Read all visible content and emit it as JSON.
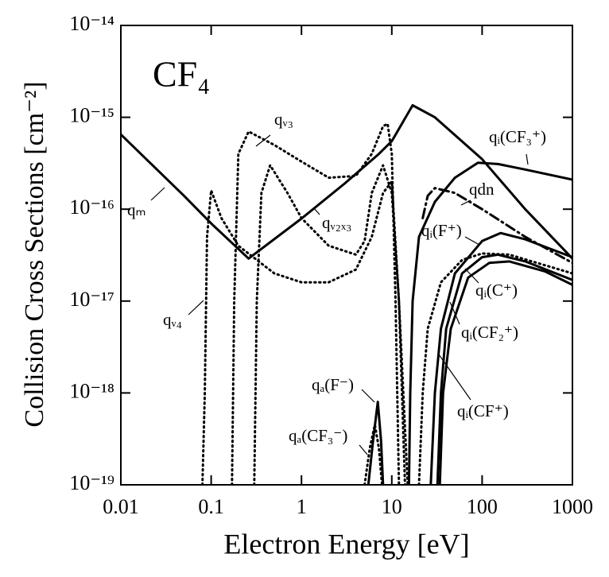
{
  "chart_data": {
    "type": "line",
    "title": "CF₄",
    "x_label": "Electron Energy  [eV]",
    "y_label": "Collision Cross Sections [cm⁻²]",
    "log_x": true,
    "log_y": true,
    "grid": false,
    "xlim": [
      0.01,
      1000
    ],
    "xticks": [
      0.01,
      0.1,
      1,
      10,
      100,
      1000
    ],
    "ylim": [
      1e-19,
      1e-14
    ],
    "yticks": [
      {
        "value": 1e-19,
        "label": "10⁻¹⁹"
      },
      {
        "value": 1e-18,
        "label": "10⁻¹⁸"
      },
      {
        "value": 1e-17,
        "label": "10⁻¹⁷"
      },
      {
        "value": 1e-16,
        "label": "10⁻¹⁶"
      },
      {
        "value": 1e-15,
        "label": "10⁻¹⁵"
      },
      {
        "value": 1e-14,
        "label": "10⁻¹⁴"
      }
    ],
    "series": [
      {
        "name": "qₘ",
        "color": "#000000",
        "style": "solid",
        "x": [
          0.01,
          0.05,
          0.1,
          0.26,
          1,
          3,
          7,
          10,
          17,
          30,
          100,
          300,
          1000
        ],
        "values": [
          6.5e-16,
          1.4e-16,
          7e-17,
          2.9e-17,
          7.9e-17,
          1.9e-16,
          3.9e-16,
          5.5e-16,
          1.35e-15,
          1e-15,
          3.5e-16,
          1e-16,
          2.9e-17
        ]
      },
      {
        "name": "qᵥ₃",
        "color": "#000000",
        "style": "dotted",
        "x": [
          0.17,
          0.18,
          0.2,
          0.26,
          0.5,
          1,
          2,
          4,
          6,
          8,
          9,
          10,
          11,
          12
        ],
        "values": [
          1e-19,
          1e-17,
          4e-16,
          7e-16,
          5e-16,
          3.3e-16,
          2.2e-16,
          2.3e-16,
          4e-16,
          8e-16,
          8.5e-16,
          4e-16,
          1e-17,
          1e-19
        ]
      },
      {
        "name": "qᵥ₄",
        "color": "#000000",
        "style": "dotted",
        "x": [
          0.08,
          0.085,
          0.09,
          0.1,
          0.13,
          0.2,
          0.5,
          1,
          2,
          4,
          6,
          8,
          10,
          12,
          14
        ],
        "values": [
          1e-19,
          1e-18,
          5e-17,
          1.6e-16,
          8e-17,
          4e-17,
          2e-17,
          1.6e-17,
          1.6e-17,
          2.2e-17,
          5e-17,
          1.5e-16,
          2e-16,
          1e-17,
          1e-19
        ]
      },
      {
        "name": "qᵥ₂ₓ₃",
        "color": "#000000",
        "style": "dotted",
        "x": [
          0.3,
          0.32,
          0.36,
          0.45,
          0.7,
          1,
          2,
          4,
          5,
          6,
          8,
          10,
          12,
          15
        ],
        "values": [
          1e-19,
          1e-17,
          1.5e-16,
          3e-16,
          1.5e-16,
          8e-17,
          4e-17,
          3.2e-17,
          4.5e-17,
          1.5e-16,
          3e-16,
          1.5e-16,
          1e-17,
          1e-19
        ]
      },
      {
        "name": "qᵢ(CF₃⁺)",
        "color": "#000000",
        "style": "solid",
        "x": [
          15.5,
          16,
          17,
          20,
          30,
          50,
          90,
          150,
          300,
          1000
        ],
        "values": [
          1e-19,
          1e-18,
          1e-17,
          5e-17,
          1.2e-16,
          2.2e-16,
          3.2e-16,
          3.1e-16,
          2.7e-16,
          2.1e-16
        ]
      },
      {
        "name": "qdn",
        "color": "#000000",
        "style": "dashdot",
        "x": [
          22,
          25,
          30,
          50,
          100,
          300,
          1000
        ],
        "values": [
          8e-17,
          1.4e-16,
          1.7e-16,
          1.5e-16,
          1e-16,
          5e-17,
          2.6e-17
        ]
      },
      {
        "name": "qᵢ(F⁺)",
        "color": "#000000",
        "style": "solid",
        "x": [
          27,
          30,
          35,
          50,
          100,
          160,
          300,
          1000
        ],
        "values": [
          1e-19,
          1e-18,
          5e-18,
          2e-17,
          4.5e-17,
          5.5e-17,
          4.7e-17,
          3e-17
        ]
      },
      {
        "name": "qᵢ(C⁺)",
        "color": "#000000",
        "style": "dotted",
        "x": [
          20,
          22,
          25,
          35,
          60,
          100,
          200,
          1000
        ],
        "values": [
          1e-19,
          1e-18,
          5e-18,
          1.6e-17,
          2.8e-17,
          3.3e-17,
          3.2e-17,
          2e-17
        ]
      },
      {
        "name": "qᵢ(CF₂⁺)",
        "color": "#000000",
        "style": "solid",
        "x": [
          32,
          35,
          40,
          60,
          100,
          150,
          300,
          1000
        ],
        "values": [
          1e-19,
          1e-18,
          5e-18,
          2e-17,
          3e-17,
          3.2e-17,
          2.7e-17,
          1.7e-17
        ]
      },
      {
        "name": "qᵢ(CF⁺)",
        "color": "#000000",
        "style": "solid",
        "x": [
          34,
          37,
          45,
          70,
          120,
          200,
          500,
          1000
        ],
        "values": [
          1e-19,
          1e-18,
          5e-18,
          1.8e-17,
          2.6e-17,
          2.7e-17,
          2.1e-17,
          1.5e-17
        ]
      },
      {
        "name": "qₐ(F⁻)",
        "color": "#000000",
        "style": "solid",
        "x": [
          5.5,
          6.2,
          7,
          7.6,
          8
        ],
        "values": [
          1e-19,
          3e-19,
          8e-19,
          3e-19,
          1e-19
        ]
      },
      {
        "name": "qₐ(CF₃⁻)",
        "color": "#000000",
        "style": "dotted",
        "x": [
          5,
          5.7,
          6.5,
          7.2,
          7.8
        ],
        "values": [
          1e-19,
          2.5e-19,
          4.5e-19,
          2.5e-19,
          1e-19
        ]
      }
    ]
  }
}
